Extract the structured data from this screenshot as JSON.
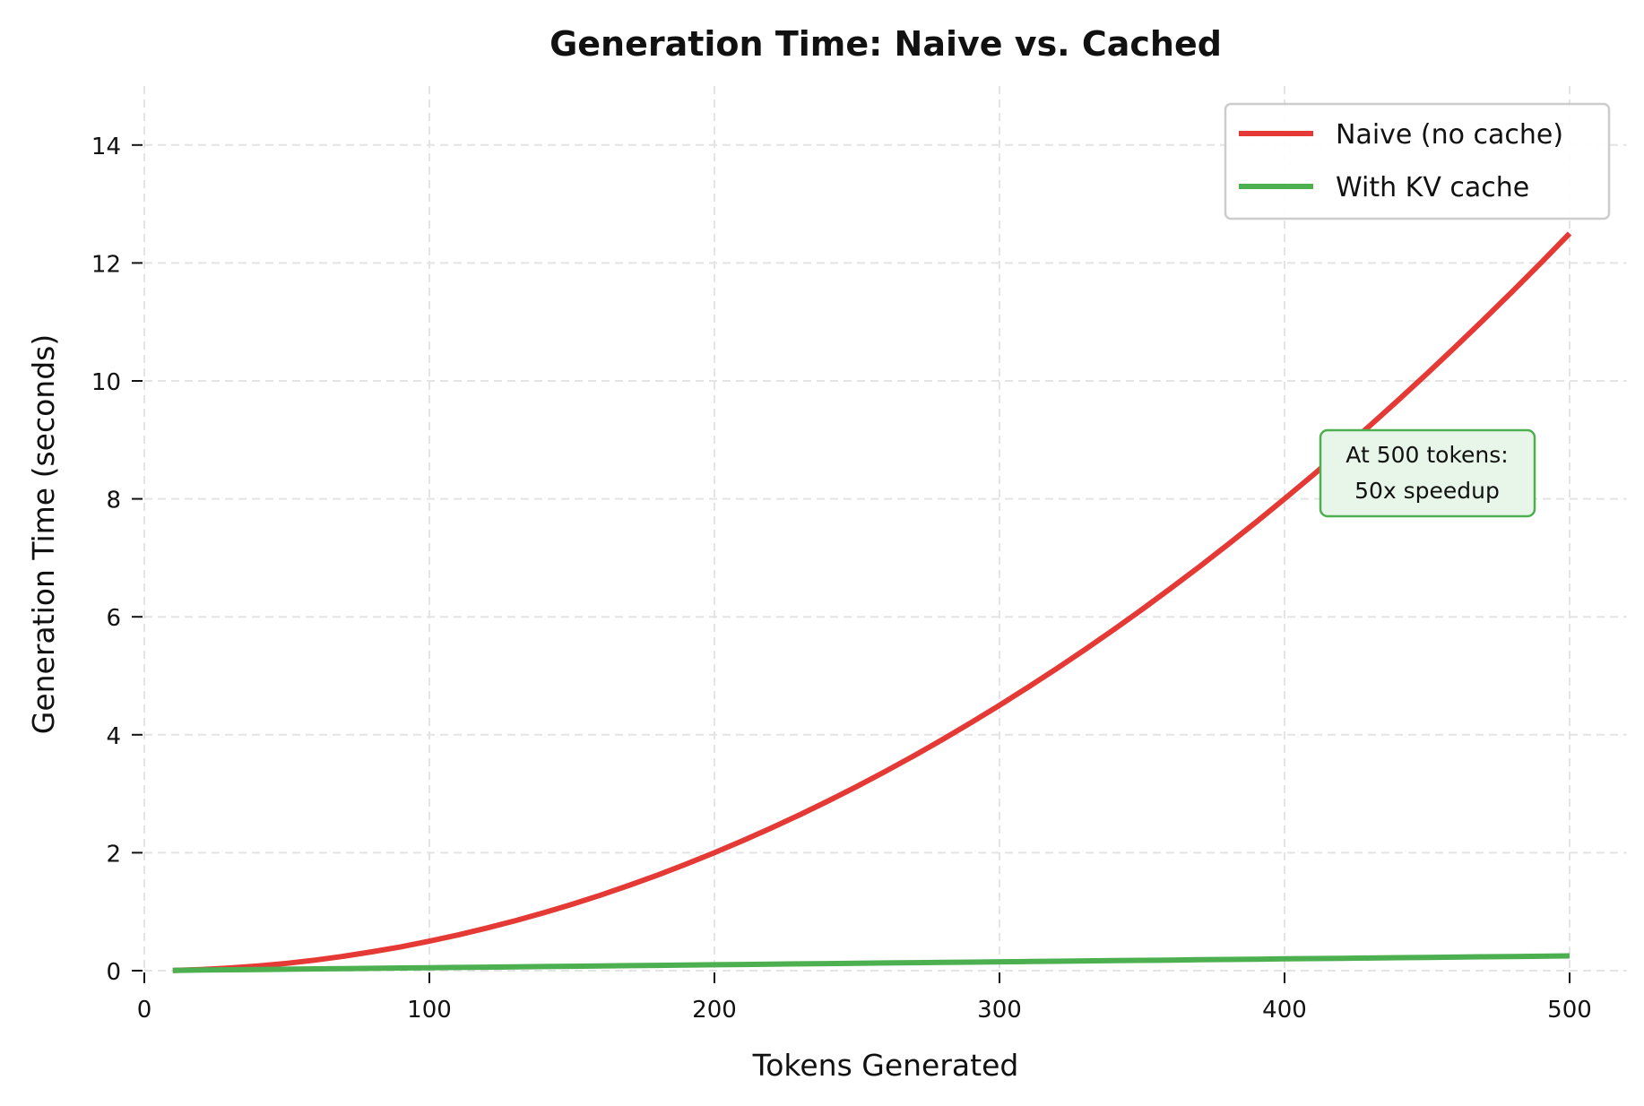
{
  "chart_data": {
    "type": "line",
    "title": "Generation Time: Naive vs. Cached",
    "xlabel": "Tokens Generated",
    "ylabel": "Generation Time (seconds)",
    "xlim": [
      0,
      520
    ],
    "ylim": [
      0,
      15
    ],
    "xticks": [
      0,
      100,
      200,
      300,
      400,
      500
    ],
    "yticks": [
      0,
      2,
      4,
      6,
      8,
      10,
      12,
      14
    ],
    "grid": true,
    "legend_position": "top-right",
    "x": [
      10,
      20,
      30,
      40,
      50,
      60,
      70,
      80,
      90,
      100,
      110,
      120,
      130,
      140,
      150,
      160,
      170,
      180,
      190,
      200,
      210,
      220,
      230,
      240,
      250,
      260,
      270,
      280,
      290,
      300,
      310,
      320,
      330,
      340,
      350,
      360,
      370,
      380,
      390,
      400,
      410,
      420,
      430,
      440,
      450,
      460,
      470,
      480,
      490,
      500
    ],
    "series": [
      {
        "name": "Naive (no cache)",
        "color": "#e53935",
        "values": [
          0.005,
          0.02,
          0.045,
          0.08,
          0.125,
          0.18,
          0.245,
          0.32,
          0.405,
          0.5,
          0.605,
          0.72,
          0.845,
          0.98,
          1.125,
          1.28,
          1.445,
          1.62,
          1.805,
          2.0,
          2.205,
          2.42,
          2.645,
          2.88,
          3.125,
          3.38,
          3.645,
          3.92,
          4.205,
          4.5,
          4.805,
          5.12,
          5.445,
          5.78,
          6.125,
          6.48,
          6.845,
          7.22,
          7.605,
          8.0,
          8.405,
          8.82,
          9.245,
          9.68,
          10.125,
          10.58,
          11.045,
          11.52,
          12.005,
          12.5
        ]
      },
      {
        "name": "With KV cache",
        "color": "#4caf50",
        "values": [
          0.005,
          0.01,
          0.015,
          0.02,
          0.025,
          0.03,
          0.035,
          0.04,
          0.045,
          0.05,
          0.055,
          0.06,
          0.065,
          0.07,
          0.075,
          0.08,
          0.085,
          0.09,
          0.095,
          0.1,
          0.105,
          0.11,
          0.115,
          0.12,
          0.125,
          0.13,
          0.135,
          0.14,
          0.145,
          0.15,
          0.155,
          0.16,
          0.165,
          0.17,
          0.175,
          0.18,
          0.185,
          0.19,
          0.195,
          0.2,
          0.205,
          0.21,
          0.215,
          0.22,
          0.225,
          0.23,
          0.235,
          0.24,
          0.245,
          0.25
        ]
      }
    ],
    "annotation": {
      "lines": [
        "At 500 tokens:",
        "50x speedup"
      ],
      "border_color": "#4caf50",
      "fill_color": "#e8f5e9"
    }
  }
}
